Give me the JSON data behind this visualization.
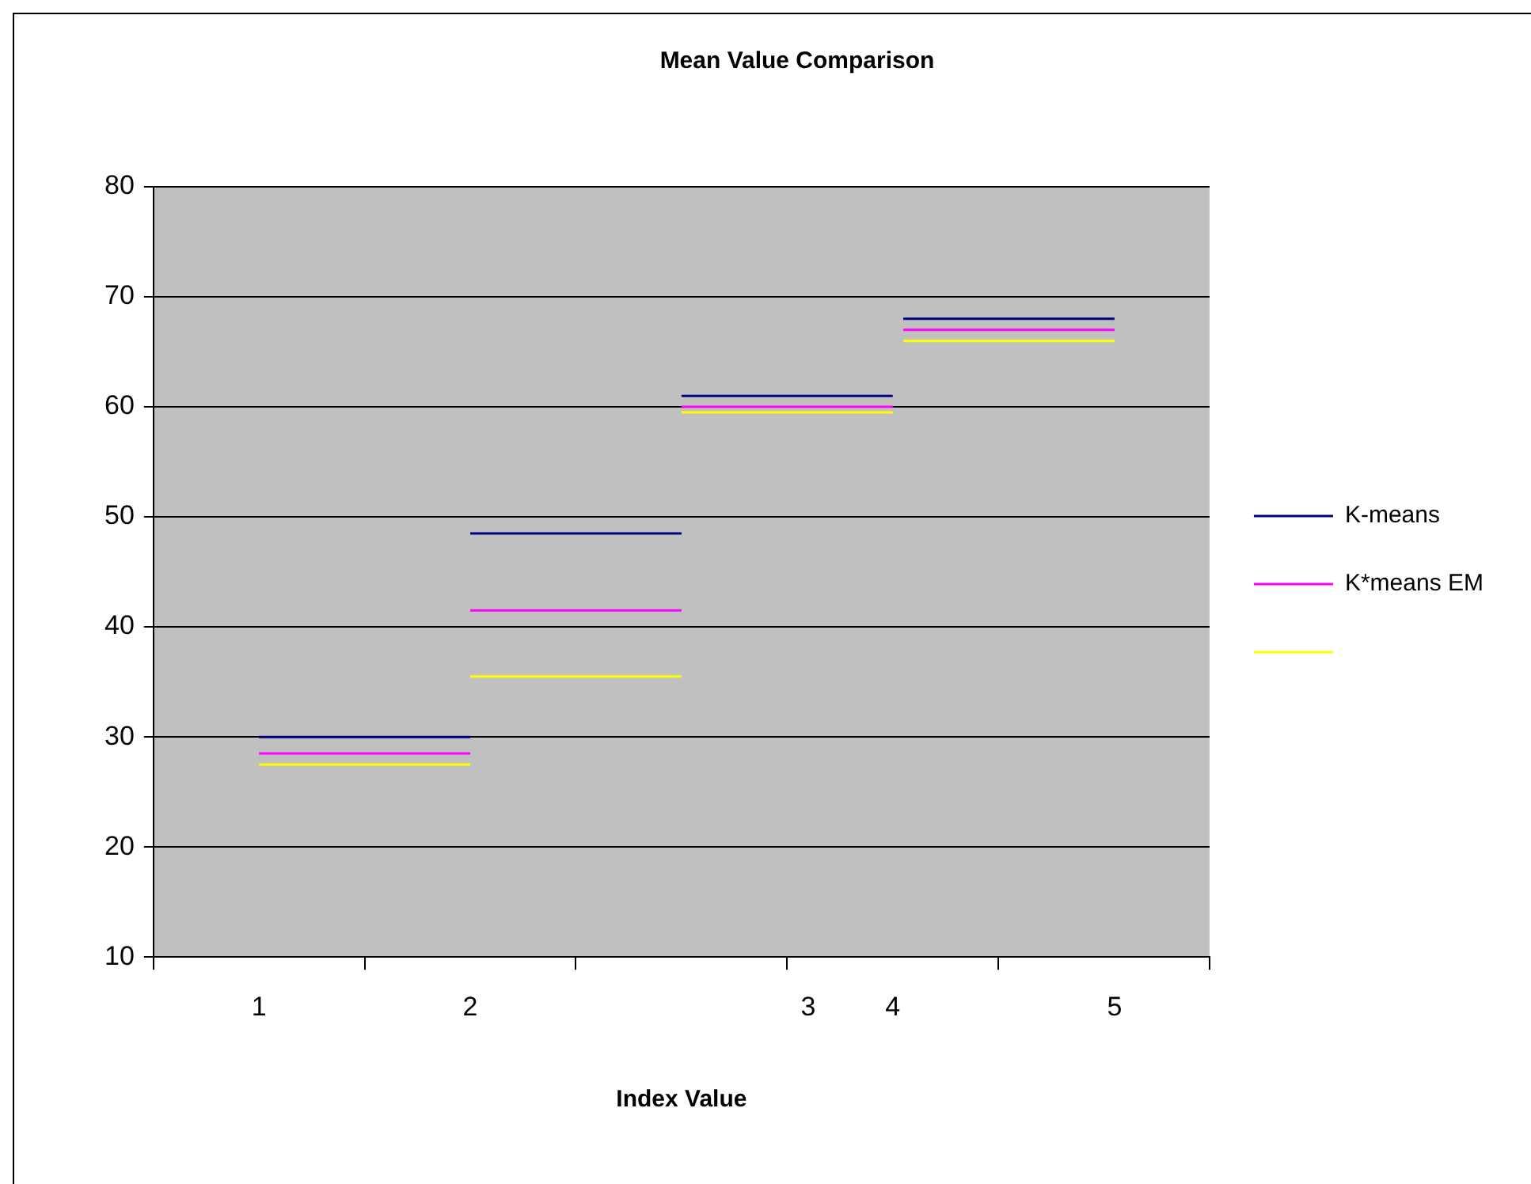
{
  "chart_data": {
    "type": "line",
    "title": "Mean Value Comparison",
    "xlabel": "Index Value",
    "x": [
      0.5,
      1.5,
      null,
      1.5,
      2.5,
      null,
      2.5,
      3.5,
      null,
      3.55,
      4.55
    ],
    "series": [
      {
        "name": "K-means",
        "color": "#000080",
        "values": [
          30,
          30,
          null,
          48.5,
          48.5,
          null,
          61,
          61,
          null,
          68,
          68
        ]
      },
      {
        "name": "K*means EM",
        "color": "#ff00ff",
        "values": [
          28.5,
          28.5,
          null,
          41.5,
          41.5,
          null,
          60,
          60,
          null,
          67,
          67
        ]
      },
      {
        "color": "#ffff00",
        "values": [
          27.5,
          27.5,
          null,
          35.5,
          35.5,
          null,
          59.5,
          59.5,
          null,
          66,
          66
        ]
      }
    ],
    "xlim": [
      0,
      5
    ],
    "xticks": [
      {
        "value": 0,
        "label": null
      },
      {
        "value": 0.5,
        "label": "1"
      },
      {
        "value": 1,
        "label": null
      },
      {
        "value": 1.5,
        "label": "2"
      },
      {
        "value": 2,
        "label": null
      },
      {
        "value": 3,
        "label": null
      },
      {
        "value": 3.1,
        "label": "3"
      },
      {
        "value": 3.5,
        "label": "4"
      },
      {
        "value": 4,
        "label": null
      },
      {
        "value": 4.55,
        "label": "5"
      },
      {
        "value": 5,
        "label": null
      }
    ],
    "ylim": [
      10,
      80
    ],
    "yticks": [
      10,
      20,
      30,
      40,
      50,
      60,
      70,
      80
    ],
    "grid": "y",
    "legend": "right",
    "marker": "none",
    "line_style": "solid"
  }
}
